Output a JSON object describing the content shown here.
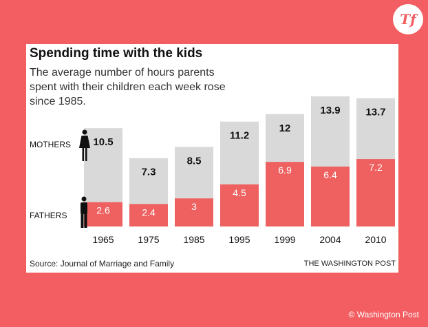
{
  "logo": {
    "text": "Tf"
  },
  "photo_credit": "© Washington Post",
  "colors": {
    "background": "#f25e62",
    "mothers_bar": "#d9d9d9",
    "fathers_bar": "#ee6160"
  },
  "chart_data": {
    "type": "bar",
    "title": "Spending time with the kids",
    "subtitle": "The average number of hours parents spent with their children each week rose since 1985.",
    "xlabel": "",
    "ylabel": "",
    "categories": [
      "1965",
      "1975",
      "1985",
      "1995",
      "1999",
      "2004",
      "2010"
    ],
    "series": [
      {
        "name": "MOTHERS",
        "values": [
          10.5,
          7.3,
          8.5,
          11.2,
          12,
          13.9,
          13.7
        ]
      },
      {
        "name": "FATHERS",
        "values": [
          2.6,
          2.4,
          3,
          4.5,
          6.9,
          6.4,
          7.2
        ]
      }
    ],
    "value_labels": {
      "MOTHERS": [
        "10.5",
        "7.3",
        "8.5",
        "11.2",
        "12",
        "13.9",
        "13.7"
      ],
      "FATHERS": [
        "2.6",
        "2.4",
        "3",
        "4.5",
        "6.9",
        "6.4",
        "7.2"
      ]
    },
    "overlap": true,
    "ylim": [
      0,
      15
    ],
    "grid": false,
    "legend": "left-side labels with person icons",
    "source": "Source: Journal of Marriage and Family",
    "credit": "THE WASHINGTON POST"
  }
}
